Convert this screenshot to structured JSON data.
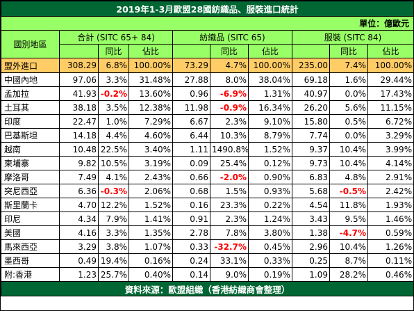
{
  "title": "2019年1-3月歐盟28國紡織品、服裝進口統計",
  "unit": "單位：億歐元",
  "headers": {
    "region": "國別地區",
    "total": "合計 (SITC 65+ 84)",
    "textiles": "紡織品 (SITC 65)",
    "clothing": "服裝 (SITC 84)",
    "yoy": "同比",
    "share": "佔比"
  },
  "total_row": [
    "盟外進口",
    "308.29",
    "6.8%",
    "100.00%",
    "73.29",
    "4.7%",
    "100.00%",
    "235.00",
    "7.4%",
    "100.00%"
  ],
  "rows": [
    [
      "中國內地",
      "97.06",
      "3.3%",
      "31.48%",
      "27.88",
      "8.0%",
      "38.04%",
      "69.18",
      "1.6%",
      "29.44%"
    ],
    [
      "孟加拉",
      "41.93",
      "-0.2%",
      "13.60%",
      "0.96",
      "-6.9%",
      "1.31%",
      "40.97",
      "0.0%",
      "17.43%"
    ],
    [
      "土耳其",
      "38.18",
      "3.5%",
      "12.38%",
      "11.98",
      "-0.9%",
      "16.34%",
      "26.20",
      "5.6%",
      "11.15%"
    ],
    [
      "印度",
      "22.47",
      "1.0%",
      "7.29%",
      "6.67",
      "2.3%",
      "9.10%",
      "15.80",
      "0.5%",
      "6.72%"
    ],
    [
      "巴基斯坦",
      "14.18",
      "4.4%",
      "4.60%",
      "6.44",
      "10.3%",
      "8.79%",
      "7.74",
      "0.0%",
      "3.29%"
    ],
    [
      "越南",
      "10.48",
      "22.5%",
      "3.40%",
      "1.11",
      "1490.8%",
      "1.52%",
      "9.37",
      "10.4%",
      "3.99%"
    ],
    [
      "柬埔寨",
      "9.82",
      "10.5%",
      "3.19%",
      "0.09",
      "25.4%",
      "0.12%",
      "9.73",
      "10.4%",
      "4.14%"
    ],
    [
      "摩洛哥",
      "7.49",
      "4.1%",
      "2.43%",
      "0.66",
      "-2.0%",
      "0.90%",
      "6.83",
      "4.8%",
      "2.91%"
    ],
    [
      "突尼西亞",
      "6.36",
      "-0.3%",
      "2.06%",
      "0.68",
      "1.5%",
      "0.93%",
      "5.68",
      "-0.5%",
      "2.42%"
    ],
    [
      "斯里蘭卡",
      "4.70",
      "12.2%",
      "1.52%",
      "0.16",
      "23.3%",
      "0.22%",
      "4.54",
      "11.8%",
      "1.93%"
    ],
    [
      "印尼",
      "4.34",
      "7.9%",
      "1.41%",
      "0.91",
      "2.3%",
      "1.24%",
      "3.43",
      "9.5%",
      "1.46%"
    ],
    [
      "美國",
      "4.16",
      "3.3%",
      "1.35%",
      "2.78",
      "7.8%",
      "3.80%",
      "1.38",
      "-4.7%",
      "0.59%"
    ],
    [
      "馬來西亞",
      "3.29",
      "3.8%",
      "1.07%",
      "0.33",
      "-32.7%",
      "0.45%",
      "2.96",
      "10.4%",
      "1.26%"
    ],
    [
      "墨西哥",
      "0.49",
      "19.4%",
      "0.16%",
      "0.24",
      "33.1%",
      "0.33%",
      "0.25",
      "8.7%",
      "0.11%"
    ],
    [
      "附:香港",
      "1.23",
      "25.7%",
      "0.40%",
      "0.14",
      "9.0%",
      "0.19%",
      "1.09",
      "28.2%",
      "0.46%"
    ]
  ],
  "source": "資料來源：歐盟組織（香港紡織商會整理）",
  "colors": {
    "title_bg": "#006633",
    "header_bg": "#99ff66",
    "total_bg": "#ffcc66",
    "negative": "#ff0000"
  }
}
